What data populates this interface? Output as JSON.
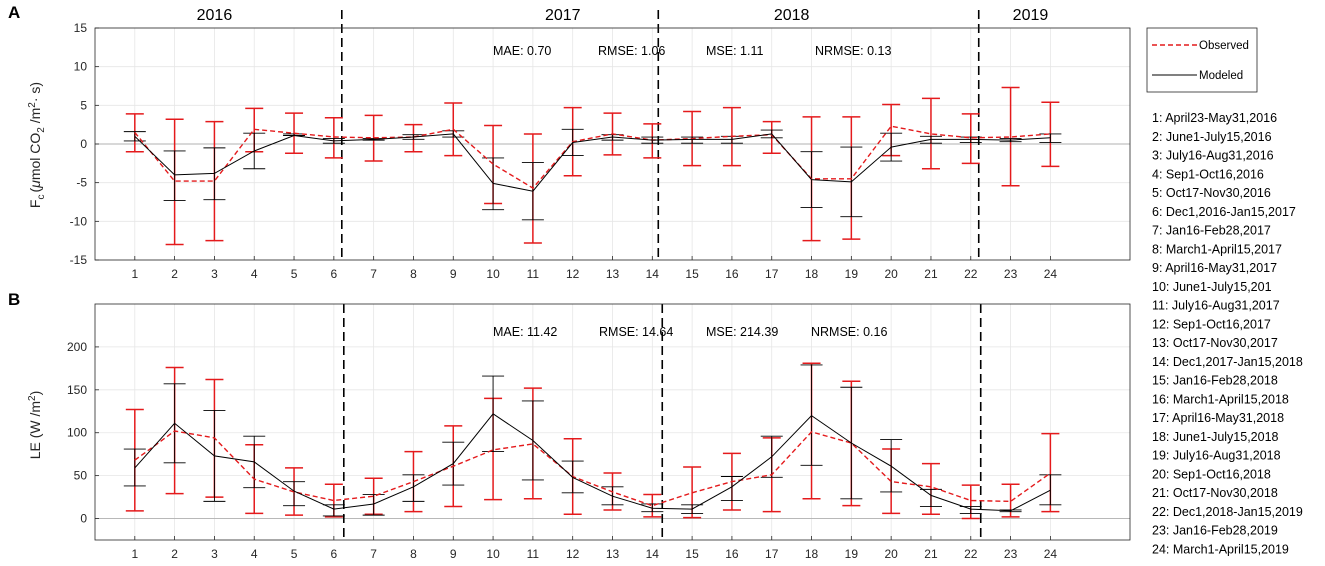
{
  "colors": {
    "observed": "#e41a1c",
    "modeled": "#000000",
    "grid": "#e6e6e6",
    "axis": "#262626"
  },
  "legend": {
    "observed": "Observed",
    "modeled": "Modeled"
  },
  "periods": [
    "1:  April23-May31,2016",
    "2:  June1-July15,2016",
    "3:  July16-Aug31,2016",
    "4:  Sep1-Oct16,2016",
    "5:  Oct17-Nov30,2016",
    "6:  Dec1,2016-Jan15,2017",
    "7:  Jan16-Feb28,2017",
    "8:  March1-April15,2017",
    "9:  April16-May31,2017",
    "10:  June1-July15,201",
    "11:  July16-Aug31,2017",
    "12:  Sep1-Oct16,2017",
    "13:  Oct17-Nov30,2017",
    "14:  Dec1,2017-Jan15,2018",
    "15:  Jan16-Feb28,2018",
    "16:  March1-April15,2018",
    "17:  April16-May31,2018",
    "18:  June1-July15,2018",
    "19:  July16-Aug31,2018",
    "20:  Sep1-Oct16,2018",
    "21:  Oct17-Nov30,2018",
    "22:  Dec1,2018-Jan15,2019",
    "23:  Jan16-Feb28,2019",
    "24:  March1-April15,2019"
  ],
  "chart_data": [
    {
      "type": "line",
      "panel": "A",
      "ylabel": "F_c (μmol CO_2 /m^2 · s)",
      "ylabel_main": "F",
      "ylabel_sub": "c",
      "ylabel_mid1": "(",
      "ylabel_mu": "μ",
      "ylabel_mid2": "mol CO",
      "ylabel_sub2": "2",
      "ylabel_mid3": " /m",
      "ylabel_sup": "2",
      "ylabel_end": "· s)",
      "xlim": [
        0,
        26
      ],
      "ylim": [
        -15,
        15
      ],
      "yticks": [
        -15,
        -10,
        -5,
        0,
        5,
        10,
        15
      ],
      "x": [
        1,
        2,
        3,
        4,
        5,
        6,
        7,
        8,
        9,
        10,
        11,
        12,
        13,
        14,
        15,
        16,
        17,
        18,
        19,
        20,
        21,
        22,
        23,
        24
      ],
      "year_labels": [
        "2016",
        "2017",
        "2018",
        "2019"
      ],
      "year_label_x": [
        3,
        11.75,
        17.5,
        23.5
      ],
      "dividers_x": [
        6.2,
        14.15,
        22.2
      ],
      "metrics": {
        "mae": "MAE: 0.70",
        "rmse": "RMSE: 1.06",
        "mse": "MSE: 1.11",
        "nrmse": "NRMSE: 0.13"
      },
      "series": [
        {
          "name": "Observed",
          "values": [
            1.5,
            -4.8,
            -4.8,
            1.9,
            1.4,
            0.9,
            0.8,
            0.9,
            1.9,
            -2.6,
            -5.7,
            0.3,
            1.3,
            0.5,
            0.7,
            1.0,
            1.2,
            -4.5,
            -4.5,
            2.3,
            1.3,
            0.8,
            0.9,
            1.3
          ],
          "lower": [
            -1.0,
            -13.0,
            -12.5,
            -1.0,
            -1.2,
            -1.8,
            -2.2,
            -1.0,
            -1.5,
            -7.7,
            -12.8,
            -4.1,
            -1.4,
            -1.8,
            -2.8,
            -2.8,
            -1.2,
            -12.5,
            -12.3,
            -1.5,
            -3.2,
            -2.5,
            -5.4,
            -2.9
          ],
          "upper": [
            3.9,
            3.2,
            2.9,
            4.6,
            4.0,
            3.4,
            3.7,
            2.5,
            5.3,
            2.4,
            1.3,
            4.7,
            4.0,
            2.6,
            4.2,
            4.7,
            2.9,
            3.5,
            3.5,
            5.1,
            5.9,
            3.9,
            7.3,
            5.4
          ]
        },
        {
          "name": "Modeled",
          "values": [
            1.0,
            -4.0,
            -3.8,
            -0.9,
            1.1,
            0.4,
            0.6,
            0.9,
            1.3,
            -5.1,
            -6.1,
            0.2,
            0.9,
            0.5,
            0.6,
            0.6,
            1.3,
            -4.6,
            -4.9,
            -0.4,
            0.6,
            0.6,
            0.5,
            0.8
          ],
          "lower": [
            0.4,
            -7.3,
            -7.2,
            -3.2,
            1.1,
            0.1,
            0.5,
            0.6,
            0.9,
            -8.5,
            -9.8,
            -1.5,
            0.5,
            0.1,
            0.1,
            0.1,
            0.8,
            -8.2,
            -9.4,
            -2.2,
            0.1,
            0.2,
            0.3,
            0.2
          ],
          "upper": [
            1.6,
            -0.9,
            -0.5,
            1.4,
            1.3,
            0.7,
            0.7,
            1.2,
            1.7,
            -1.8,
            -2.4,
            1.9,
            1.2,
            0.9,
            0.9,
            1.0,
            1.8,
            -1.0,
            -0.4,
            1.4,
            1.0,
            0.9,
            0.7,
            1.3
          ]
        }
      ]
    },
    {
      "type": "line",
      "panel": "B",
      "ylabel": "LE (W /m^2)",
      "ylabel_main": "LE (W /m",
      "ylabel_sup": "2",
      "ylabel_end": ")",
      "xlim": [
        0,
        26
      ],
      "ylim": [
        -25,
        250
      ],
      "yticks": [
        0,
        50,
        100,
        150,
        200
      ],
      "x": [
        1,
        2,
        3,
        4,
        5,
        6,
        7,
        8,
        9,
        10,
        11,
        12,
        13,
        14,
        15,
        16,
        17,
        18,
        19,
        20,
        21,
        22,
        23,
        24
      ],
      "dividers_x": [
        6.25,
        14.25,
        22.25
      ],
      "metrics": {
        "mae": "MAE: 11.42",
        "rmse": "RMSE: 14.64",
        "mse": "MSE: 214.39",
        "nrmse": "NRMSE: 0.16"
      },
      "series": [
        {
          "name": "Observed",
          "values": [
            68,
            102,
            94,
            46,
            31,
            21,
            26,
            43,
            61,
            80,
            87,
            49,
            31,
            15,
            30,
            43,
            51,
            101,
            88,
            43,
            37,
            21,
            20,
            53
          ],
          "lower": [
            9,
            29,
            25,
            6,
            4,
            2,
            5,
            8,
            14,
            22,
            23,
            5,
            10,
            2,
            1,
            10,
            8,
            23,
            15,
            6,
            5,
            0,
            2,
            8
          ],
          "upper": [
            127,
            176,
            162,
            86,
            59,
            40,
            47,
            78,
            108,
            140,
            152,
            93,
            53,
            28,
            60,
            76,
            94,
            181,
            160,
            81,
            64,
            39,
            40,
            99
          ]
        },
        {
          "name": "Modeled",
          "values": [
            59,
            111,
            73,
            66,
            32,
            11,
            17,
            37,
            64,
            122,
            91,
            48,
            26,
            12,
            11,
            37,
            72,
            120,
            88,
            61,
            27,
            11,
            9,
            33
          ],
          "lower": [
            38,
            65,
            20,
            36,
            15,
            3,
            4,
            20,
            39,
            78,
            45,
            30,
            16,
            8,
            6,
            21,
            48,
            62,
            23,
            31,
            14,
            6,
            8,
            16
          ],
          "upper": [
            81,
            157,
            126,
            96,
            43,
            16,
            28,
            51,
            89,
            166,
            137,
            67,
            37,
            17,
            16,
            49,
            96,
            179,
            153,
            92,
            34,
            14,
            10,
            51
          ]
        }
      ]
    }
  ]
}
